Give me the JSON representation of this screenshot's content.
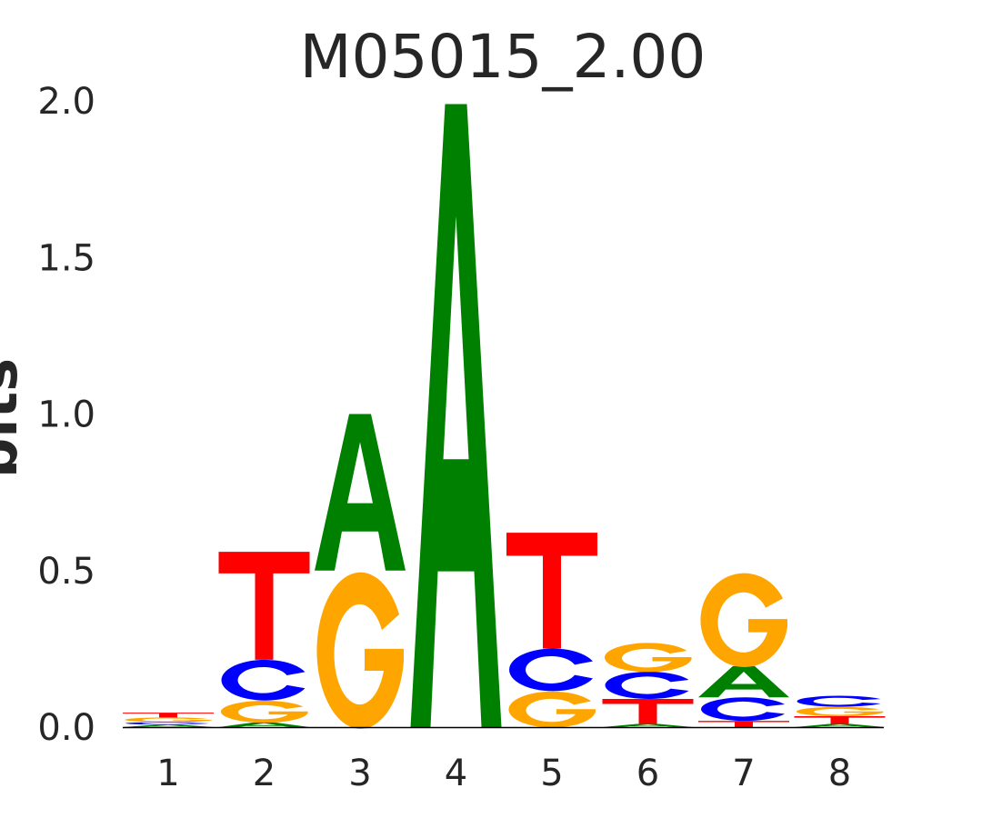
{
  "chart_data": {
    "type": "sequence-logo",
    "title": "M05015_2.00",
    "ylabel": "bits",
    "xlabel": "",
    "ylim": [
      0,
      2.0
    ],
    "yticks": [
      "0.0",
      "0.5",
      "1.0",
      "1.5",
      "2.0"
    ],
    "ytick_values": [
      0,
      0.5,
      1.0,
      1.5,
      2.0
    ],
    "categories": [
      "1",
      "2",
      "3",
      "4",
      "5",
      "6",
      "7",
      "8"
    ],
    "colors": {
      "A": "#008000",
      "C": "#0000ff",
      "G": "#ffa500",
      "T": "#ff0000"
    },
    "positions": [
      [
        {
          "base": "A",
          "bits": 0.008
        },
        {
          "base": "C",
          "bits": 0.008
        },
        {
          "base": "G",
          "bits": 0.015
        },
        {
          "base": "T",
          "bits": 0.015
        }
      ],
      [
        {
          "base": "A",
          "bits": 0.015
        },
        {
          "base": "G",
          "bits": 0.07
        },
        {
          "base": "C",
          "bits": 0.13
        },
        {
          "base": "T",
          "bits": 0.345
        }
      ],
      [
        {
          "base": "G",
          "bits": 0.5
        },
        {
          "base": "A",
          "bits": 0.5
        }
      ],
      [
        {
          "base": "A",
          "bits": 1.99
        }
      ],
      [
        {
          "base": "G",
          "bits": 0.115
        },
        {
          "base": "C",
          "bits": 0.136
        },
        {
          "base": "T",
          "bits": 0.37
        }
      ],
      [
        {
          "base": "A",
          "bits": 0.01
        },
        {
          "base": "T",
          "bits": 0.08
        },
        {
          "base": "C",
          "bits": 0.087
        },
        {
          "base": "G",
          "bits": 0.093
        }
      ],
      [
        {
          "base": "T",
          "bits": 0.02
        },
        {
          "base": "C",
          "bits": 0.075
        },
        {
          "base": "A",
          "bits": 0.1
        },
        {
          "base": "G",
          "bits": 0.3
        }
      ],
      [
        {
          "base": "A",
          "bits": 0.01
        },
        {
          "base": "T",
          "bits": 0.025
        },
        {
          "base": "G",
          "bits": 0.03
        },
        {
          "base": "C",
          "bits": 0.035
        }
      ]
    ]
  }
}
